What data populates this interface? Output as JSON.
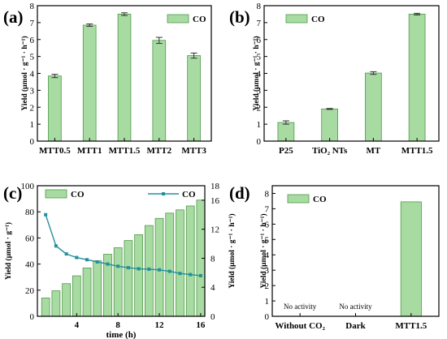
{
  "chart_data": [
    {
      "panel": "(a)",
      "type": "bar",
      "categories": [
        "MTT0.5",
        "MTT1",
        "MTT1.5",
        "MTT2",
        "MTT3"
      ],
      "series": [
        {
          "name": "CO",
          "values": [
            3.85,
            6.85,
            7.5,
            5.95,
            5.05
          ],
          "errors": [
            0.1,
            0.07,
            0.08,
            0.18,
            0.15
          ]
        }
      ],
      "ylabel": "Yield (μmol · g⁻¹ · h⁻¹)",
      "ylim": [
        0,
        8
      ],
      "yticks": [
        0,
        1,
        2,
        3,
        4,
        5,
        6,
        7,
        8
      ],
      "legend": "top-right"
    },
    {
      "panel": "(b)",
      "type": "bar",
      "categories": [
        "P25",
        "TiO₂ NTs",
        "MT",
        "MTT1.5"
      ],
      "series": [
        {
          "name": "CO",
          "values": [
            1.1,
            1.9,
            4.02,
            7.5
          ],
          "errors": [
            0.1,
            0.03,
            0.08,
            0.05
          ]
        }
      ],
      "ylabel": "Yield (μmol · g⁻¹ · h⁻¹)",
      "ylim": [
        0,
        8
      ],
      "yticks": [
        0,
        1,
        2,
        3,
        4,
        5,
        6,
        7,
        8
      ],
      "legend": "top-left"
    },
    {
      "panel": "(c)",
      "type": "bar",
      "x": [
        1,
        2,
        3,
        4,
        5,
        6,
        7,
        8,
        9,
        10,
        11,
        12,
        13,
        14,
        15,
        16
      ],
      "series": [
        {
          "name": "CO",
          "type": "bar",
          "axis": "left",
          "values": [
            14,
            19.5,
            25,
            31,
            37,
            42.5,
            47.5,
            52.5,
            58,
            62.5,
            69.5,
            75,
            79,
            81.5,
            84.5,
            89
          ]
        },
        {
          "name": "CO",
          "type": "line",
          "axis": "right",
          "values": [
            14,
            9.7,
            8.6,
            8.1,
            7.8,
            7.5,
            7.2,
            6.9,
            6.7,
            6.55,
            6.5,
            6.4,
            6.2,
            5.9,
            5.75,
            5.6
          ]
        }
      ],
      "xlabel": "time (h)",
      "ylabel": "Yield (μmol · g⁻¹)",
      "ylabel_right": "Yield (μmol · g⁻¹ · h⁻¹)",
      "xlim": [
        0.2,
        16.4
      ],
      "xticks": [
        4,
        8,
        12,
        16
      ],
      "ylim": [
        0,
        100
      ],
      "yticks": [
        0,
        20,
        40,
        60,
        80,
        100
      ],
      "ylim_right": [
        0,
        18
      ],
      "yticks_right": [
        0,
        4,
        8,
        12,
        16,
        18
      ],
      "legend": "top"
    },
    {
      "panel": "(d)",
      "type": "bar",
      "categories": [
        "Without CO₂",
        "Dark",
        "MTT1.5"
      ],
      "series": [
        {
          "name": "CO",
          "values": [
            0,
            0,
            7.45
          ]
        }
      ],
      "annotations": [
        "No activity",
        "No activity"
      ],
      "ylabel": "Yield (μmol · g⁻¹ · h⁻¹)",
      "ylim": [
        0,
        8.5
      ],
      "yticks": [
        0,
        1,
        2,
        3,
        4,
        5,
        6,
        7,
        8
      ],
      "legend": "top-left"
    }
  ],
  "colors": {
    "bar_fill": "#a8dba2",
    "bar_edge": "#4e9848",
    "line": "#24909c",
    "axis": "#000000"
  }
}
